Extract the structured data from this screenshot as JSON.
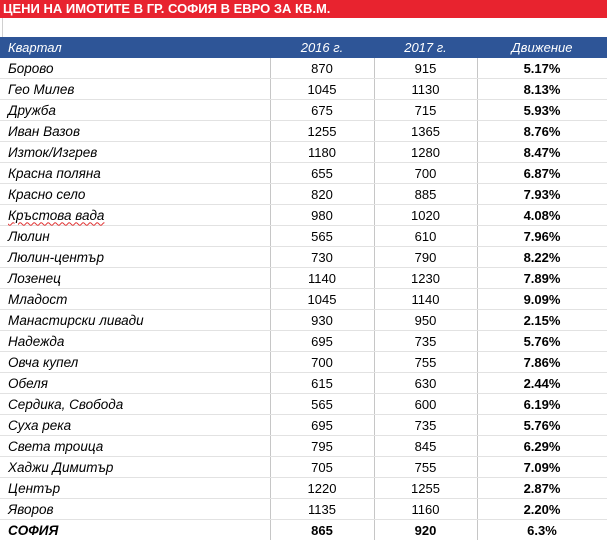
{
  "title": "ЦЕНИ НА ИМОТИТЕ В ГР. СОФИЯ В ЕВРО ЗА КВ.М.",
  "table": {
    "headers": [
      "Квартал",
      "2016 г.",
      "2017 г.",
      "Движение"
    ],
    "rows": [
      {
        "name": "Борово",
        "y2016": "870",
        "y2017": "915",
        "change": "5.17%"
      },
      {
        "name": "Гео Милев",
        "y2016": "1045",
        "y2017": "1130",
        "change": "8.13%"
      },
      {
        "name": "Дружба",
        "y2016": "675",
        "y2017": "715",
        "change": "5.93%"
      },
      {
        "name": "Иван Вазов",
        "y2016": "1255",
        "y2017": "1365",
        "change": "8.76%"
      },
      {
        "name": "Изток/Изгрев",
        "y2016": "1180",
        "y2017": "1280",
        "change": "8.47%"
      },
      {
        "name": "Красна поляна",
        "y2016": "655",
        "y2017": "700",
        "change": "6.87%"
      },
      {
        "name": "Красно село",
        "y2016": "820",
        "y2017": "885",
        "change": "7.93%"
      },
      {
        "name": "Кръстова вада",
        "y2016": "980",
        "y2017": "1020",
        "change": "4.08%"
      },
      {
        "name": "Люлин",
        "y2016": "565",
        "y2017": "610",
        "change": "7.96%"
      },
      {
        "name": "Люлин-център",
        "y2016": "730",
        "y2017": "790",
        "change": "8.22%"
      },
      {
        "name": "Лозенец",
        "y2016": "1140",
        "y2017": "1230",
        "change": "7.89%"
      },
      {
        "name": "Младост",
        "y2016": "1045",
        "y2017": "1140",
        "change": "9.09%"
      },
      {
        "name": "Манастирски ливади",
        "y2016": "930",
        "y2017": "950",
        "change": "2.15%"
      },
      {
        "name": "Надежда",
        "y2016": "695",
        "y2017": "735",
        "change": "5.76%"
      },
      {
        "name": "Овча купел",
        "y2016": "700",
        "y2017": "755",
        "change": "7.86%"
      },
      {
        "name": "Обеля",
        "y2016": "615",
        "y2017": "630",
        "change": "2.44%"
      },
      {
        "name": "Сердика, Свобода",
        "y2016": "565",
        "y2017": "600",
        "change": "6.19%"
      },
      {
        "name": "Суха река",
        "y2016": "695",
        "y2017": "735",
        "change": "5.76%"
      },
      {
        "name": "Света троица",
        "y2016": "795",
        "y2017": "845",
        "change": "6.29%"
      },
      {
        "name": "Хаджи Димитър",
        "y2016": "705",
        "y2017": "755",
        "change": "7.09%"
      },
      {
        "name": "Център",
        "y2016": "1220",
        "y2017": "1255",
        "change": "2.87%"
      },
      {
        "name": "Яворов",
        "y2016": "1135",
        "y2017": "1160",
        "change": "2.20%"
      }
    ],
    "total": {
      "name": "СОФИЯ",
      "y2016": "865",
      "y2017": "920",
      "change": "6.3%"
    }
  },
  "colors": {
    "title_bg": "#e8232f",
    "header_bg": "#2e5597"
  }
}
